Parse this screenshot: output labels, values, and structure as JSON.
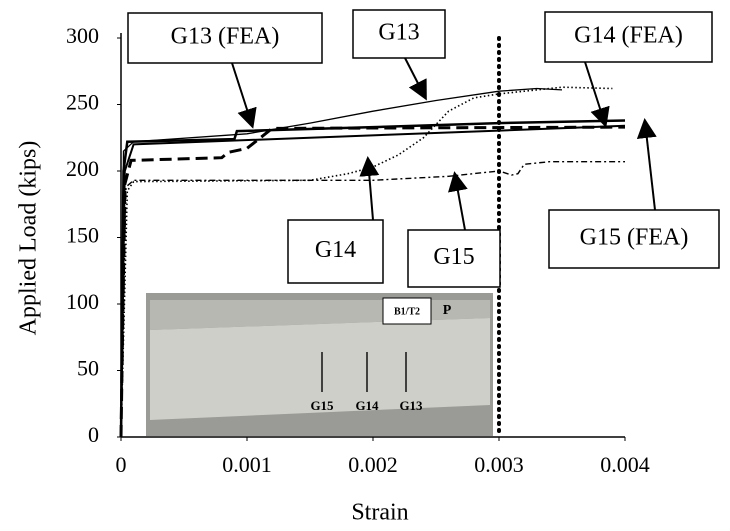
{
  "chart_data": {
    "type": "line",
    "xlabel": "Strain",
    "ylabel": "Applied Load (kips)",
    "xlim": [
      0,
      0.004
    ],
    "ylim": [
      0,
      300
    ],
    "xticks": [
      0,
      0.001,
      0.002,
      0.003,
      0.004
    ],
    "yticks": [
      0,
      50,
      100,
      150,
      200,
      250,
      300
    ],
    "grid": false,
    "vline": 0.003,
    "series": [
      {
        "name": "G13 (FEA)",
        "color": "#000000",
        "style": "solid-thick",
        "x": [
          0,
          2e-05,
          5e-05,
          0.0009,
          0.00092,
          0.002,
          0.003,
          0.004
        ],
        "values": [
          0,
          200,
          222,
          224,
          230,
          233,
          236,
          238
        ]
      },
      {
        "name": "G13",
        "color": "#000000",
        "style": "solid-thin",
        "x": [
          0,
          2e-05,
          0.0001,
          0.001,
          0.0015,
          0.002,
          0.0025,
          0.003,
          0.0033,
          0.0035
        ],
        "values": [
          0,
          215,
          222,
          228,
          236,
          245,
          253,
          260,
          262,
          261
        ]
      },
      {
        "name": "G14 (FEA)",
        "color": "#000000",
        "style": "dash-thick",
        "x": [
          0,
          3e-05,
          8e-05,
          0.0008,
          0.00085,
          0.001,
          0.0012,
          0.004
        ],
        "values": [
          0,
          190,
          208,
          210,
          214,
          217,
          232,
          233
        ]
      },
      {
        "name": "G14",
        "color": "#000000",
        "style": "dot",
        "x": [
          0,
          5e-05,
          0.0001,
          0.0015,
          0.0018,
          0.002,
          0.0022,
          0.0024,
          0.0026,
          0.0028,
          0.003,
          0.0035,
          0.0039
        ],
        "values": [
          0,
          185,
          192,
          193,
          198,
          203,
          212,
          225,
          245,
          255,
          258,
          263,
          262
        ]
      },
      {
        "name": "G15",
        "color": "#000000",
        "style": "dashdot",
        "x": [
          0,
          4e-05,
          0.0001,
          0.002,
          0.0026,
          0.0029,
          0.003,
          0.0031,
          0.00315,
          0.0032,
          0.0034,
          0.004
        ],
        "values": [
          0,
          188,
          193,
          193,
          196,
          199,
          200,
          197,
          198,
          205,
          207,
          207
        ]
      },
      {
        "name": "G15 (FEA)",
        "color": "#000000",
        "style": "solid-mid",
        "x": [
          0,
          3e-05,
          0.0001,
          0.004
        ],
        "values": [
          0,
          200,
          220,
          234
        ]
      }
    ],
    "inset": {
      "labels": [
        "B1/T2",
        "P",
        "G15",
        "G14",
        "G13"
      ]
    }
  }
}
